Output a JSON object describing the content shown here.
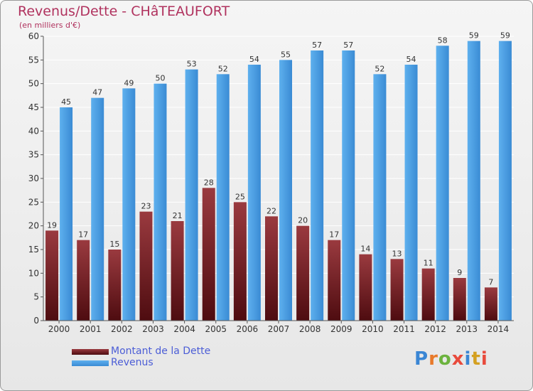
{
  "title": "Revenus/Dette - CHâTEAUFORT",
  "subtitle": "(en milliers d'€)",
  "chart_data": {
    "type": "bar",
    "categories": [
      "2000",
      "2001",
      "2002",
      "2003",
      "2004",
      "2005",
      "2006",
      "2007",
      "2008",
      "2009",
      "2010",
      "2011",
      "2012",
      "2013",
      "2014"
    ],
    "series": [
      {
        "name": "Montant de la Dette",
        "values": [
          19,
          17,
          15,
          23,
          21,
          28,
          25,
          22,
          20,
          17,
          14,
          13,
          11,
          9,
          7
        ],
        "color": "#7a1d24"
      },
      {
        "name": "Revenus",
        "values": [
          45,
          47,
          49,
          50,
          53,
          52,
          54,
          55,
          57,
          57,
          52,
          54,
          58,
          59,
          59
        ],
        "color": "#4a9ee2"
      }
    ],
    "ylim": [
      0,
      60
    ],
    "yticks": [
      0,
      5,
      10,
      15,
      20,
      25,
      30,
      35,
      40,
      45,
      50,
      55,
      60
    ],
    "grid": true,
    "legend": "bottom-left"
  },
  "logo": {
    "text": "Proxiti",
    "colors": [
      "#3a86d4",
      "#e8792a",
      "#6cb33e",
      "#e84a3c",
      "#3a86d4",
      "#d4a020",
      "#e84a3c"
    ]
  }
}
